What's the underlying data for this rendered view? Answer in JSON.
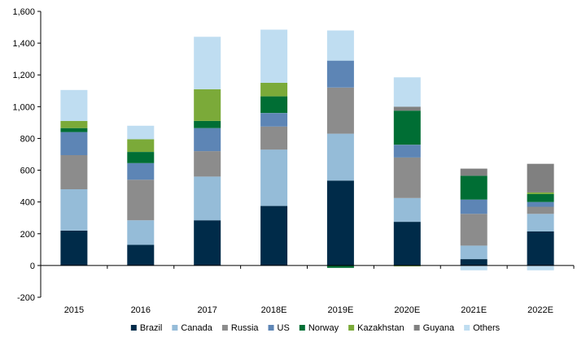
{
  "chart_data": {
    "type": "bar",
    "stacked": true,
    "title": "",
    "xlabel": "",
    "ylabel": "",
    "ylim": [
      -200,
      1600
    ],
    "yticks": [
      -200,
      0,
      200,
      400,
      600,
      800,
      1000,
      1200,
      1400,
      1600
    ],
    "ytick_labels": [
      "-200",
      "0",
      "200",
      "400",
      "600",
      "800",
      "1,000",
      "1,200",
      "1,400",
      "1,600"
    ],
    "grid": false,
    "legend_position": "bottom",
    "categories": [
      "2015",
      "2016",
      "2017",
      "2018E",
      "2019E",
      "2020E",
      "2021E",
      "2022E"
    ],
    "series": [
      {
        "name": "Brazil",
        "color": "#002B49",
        "values": [
          220,
          130,
          285,
          375,
          535,
          275,
          40,
          215
        ]
      },
      {
        "name": "Canada",
        "color": "#95BCD8",
        "values": [
          260,
          155,
          275,
          355,
          295,
          150,
          85,
          110
        ]
      },
      {
        "name": "Russia",
        "color": "#8C8C8C",
        "values": [
          215,
          255,
          160,
          145,
          290,
          255,
          200,
          45
        ]
      },
      {
        "name": "US",
        "color": "#5D85B5",
        "values": [
          145,
          105,
          145,
          85,
          170,
          80,
          90,
          30
        ]
      },
      {
        "name": "Norway",
        "color": "#006E34",
        "values": [
          25,
          70,
          45,
          105,
          -15,
          215,
          150,
          50
        ]
      },
      {
        "name": "Kazakhstan",
        "color": "#7BAA39",
        "values": [
          45,
          80,
          200,
          85,
          0,
          -5,
          0,
          10
        ]
      },
      {
        "name": "Guyana",
        "color": "#808080",
        "values": [
          0,
          0,
          0,
          0,
          0,
          25,
          45,
          180
        ]
      },
      {
        "name": "Others",
        "color": "#BFDDF1",
        "values": [
          195,
          85,
          330,
          335,
          190,
          185,
          -30,
          -30
        ]
      }
    ]
  }
}
